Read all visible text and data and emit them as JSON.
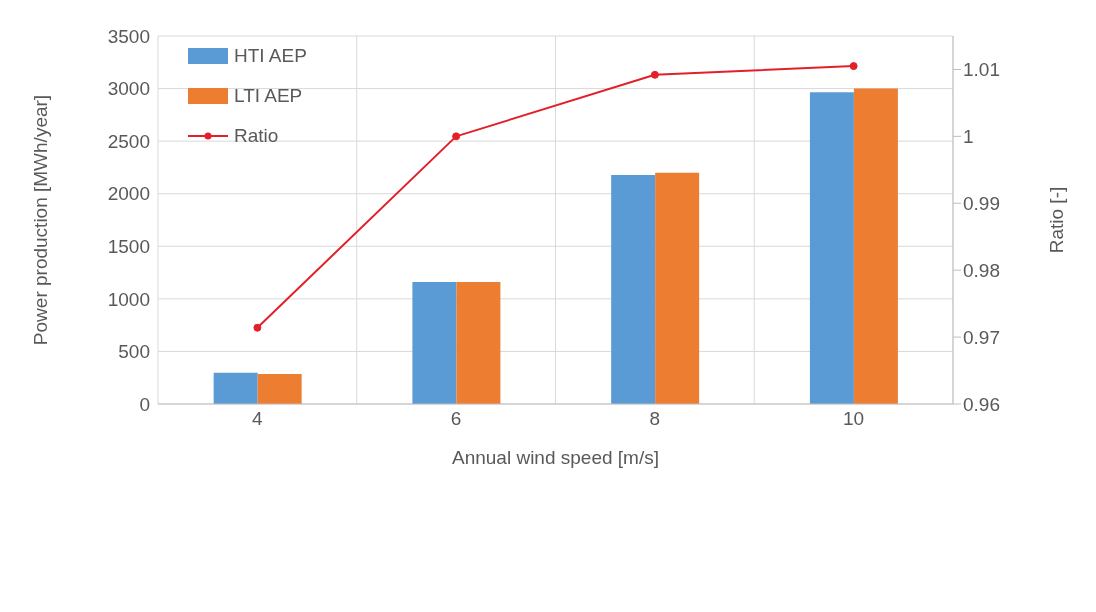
{
  "chart_data": {
    "type": "bar",
    "xlabel": "Annual wind speed [m/s]",
    "ylabel": "Power production [MWh/year]",
    "y2label": "Ratio [-]",
    "categories": [
      "4",
      "6",
      "8",
      "10"
    ],
    "series": [
      {
        "name": "HTI AEP",
        "color": "#5b9bd5",
        "values": [
          297,
          1160,
          2178,
          2964
        ]
      },
      {
        "name": "LTI AEP",
        "color": "#ed7d31",
        "values": [
          285,
          1160,
          2200,
          3000
        ]
      },
      {
        "name": "Ratio",
        "type": "line",
        "axis": "y2",
        "color": "#e3202a",
        "values": [
          0.9714,
          1.0,
          1.0092,
          1.0105
        ]
      }
    ],
    "ylim": [
      0,
      3500
    ],
    "yticks": [
      0,
      500,
      1000,
      1500,
      2000,
      2500,
      3000,
      3500
    ],
    "y2lim": [
      0.96,
      1.015
    ],
    "y2ticks": [
      0.96,
      0.97,
      0.98,
      0.99,
      1,
      1.01
    ],
    "grid": true,
    "legend": "top left",
    "marker": "circle",
    "line_style": "solid"
  }
}
